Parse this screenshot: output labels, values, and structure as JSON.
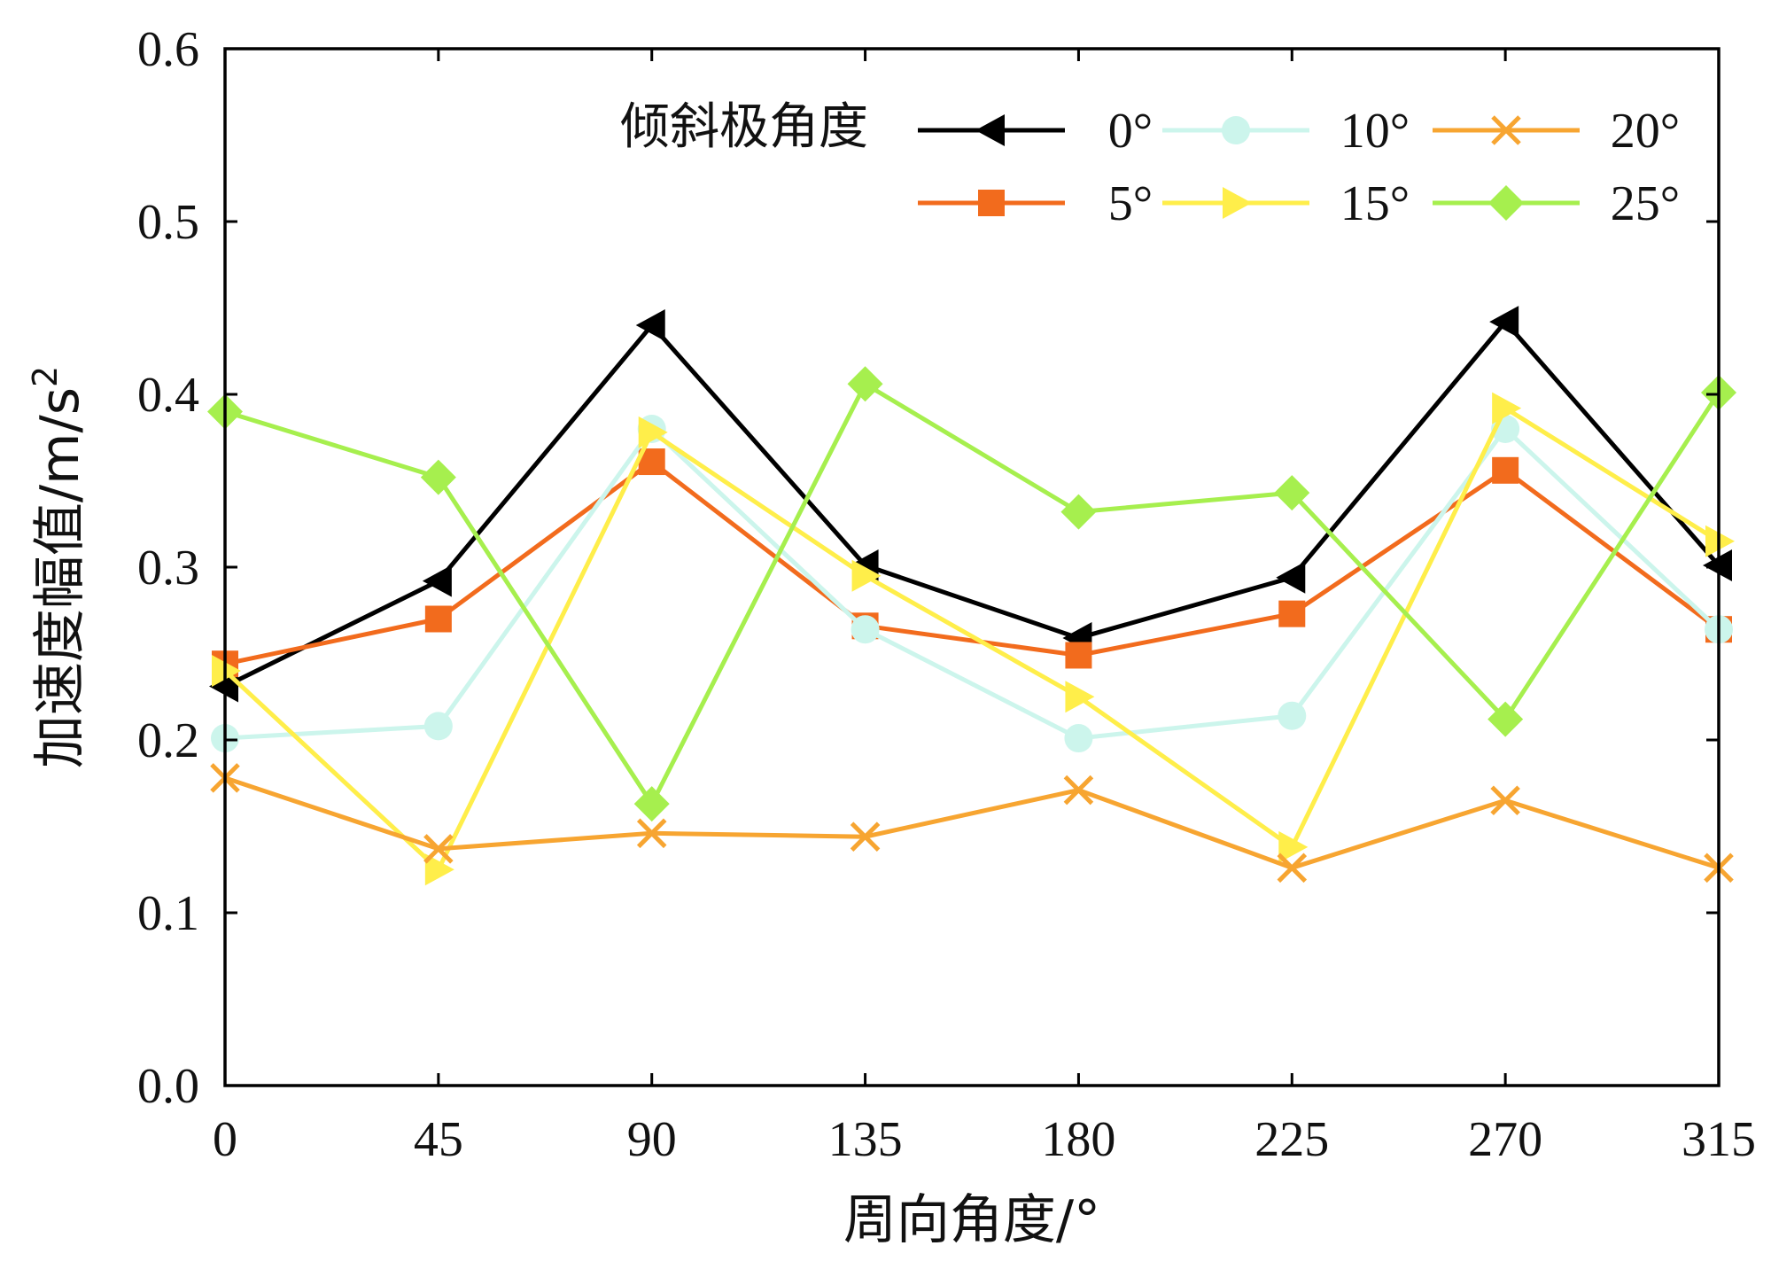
{
  "chart_data": {
    "type": "line",
    "title": "",
    "xlabel": "周向角度/°",
    "ylabel_text": "加速度幅值/m/s",
    "ylabel_sup": "2",
    "x": [
      0,
      45,
      90,
      135,
      180,
      225,
      270,
      315
    ],
    "x_tick_labels": [
      "0",
      "45",
      "90",
      "135",
      "180",
      "225",
      "270",
      "315"
    ],
    "ylim": [
      0,
      0.6
    ],
    "y_ticks": [
      0.0,
      0.1,
      0.2,
      0.3,
      0.4,
      0.5,
      0.6
    ],
    "y_tick_labels": [
      "0.0",
      "0.1",
      "0.2",
      "0.3",
      "0.4",
      "0.5",
      "0.6"
    ],
    "grid": false,
    "legend": {
      "title": "倾斜极角度",
      "position": "top-right",
      "columns": 3
    },
    "series": [
      {
        "name": "0°",
        "color": "#000000",
        "marker": "triangle-left",
        "values": [
          0.231,
          0.292,
          0.44,
          0.301,
          0.259,
          0.294,
          0.442,
          0.301
        ]
      },
      {
        "name": "5°",
        "color": "#F26B1D",
        "marker": "square",
        "values": [
          0.244,
          0.27,
          0.361,
          0.266,
          0.249,
          0.273,
          0.356,
          0.264
        ]
      },
      {
        "name": "10°",
        "color": "#CCF5EC",
        "marker": "circle",
        "values": [
          0.201,
          0.208,
          0.38,
          0.264,
          0.201,
          0.214,
          0.38,
          0.264
        ]
      },
      {
        "name": "15°",
        "color": "#FFEE4A",
        "marker": "triangle-right",
        "values": [
          0.24,
          0.125,
          0.378,
          0.295,
          0.225,
          0.138,
          0.392,
          0.315
        ]
      },
      {
        "name": "20°",
        "color": "#F7A531",
        "marker": "x",
        "values": [
          0.178,
          0.137,
          0.146,
          0.144,
          0.171,
          0.126,
          0.165,
          0.126
        ]
      },
      {
        "name": "25°",
        "color": "#A6EF4E",
        "marker": "diamond",
        "values": [
          0.39,
          0.352,
          0.163,
          0.406,
          0.332,
          0.343,
          0.212,
          0.401
        ]
      }
    ]
  }
}
